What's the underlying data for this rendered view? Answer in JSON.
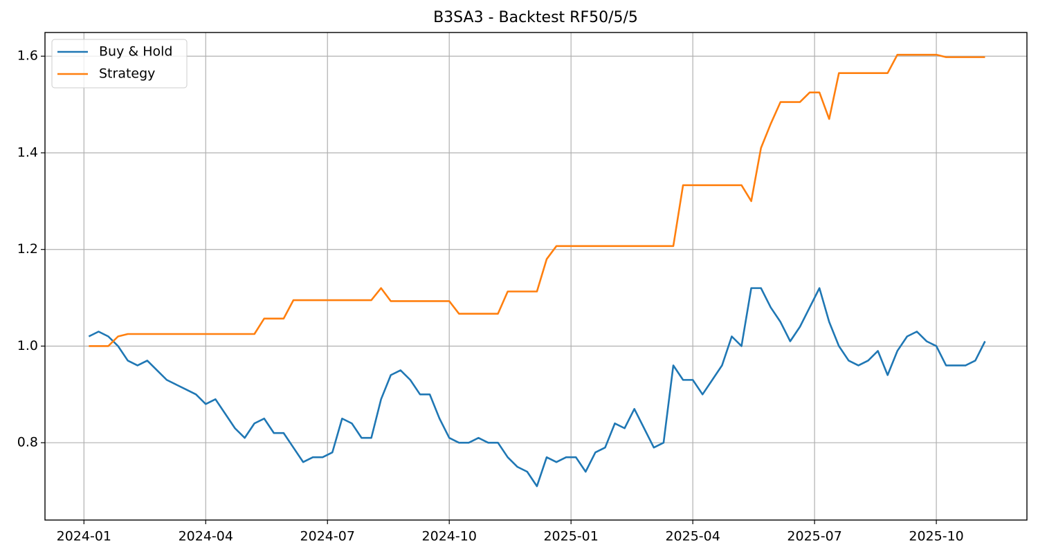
{
  "chart_data": {
    "type": "line",
    "title": "B3SA3 - Backtest RF50/5/5",
    "x": [
      2024.01,
      2024.03,
      2024.05,
      2024.07,
      2024.09,
      2024.11,
      2024.13,
      2024.15,
      2024.17,
      2024.19,
      2024.21,
      2024.23,
      2024.25,
      2024.27,
      2024.29,
      2024.31,
      2024.33,
      2024.35,
      2024.37,
      2024.39,
      2024.41,
      2024.43,
      2024.45,
      2024.47,
      2024.49,
      2024.51,
      2024.53,
      2024.55,
      2024.57,
      2024.59,
      2024.61,
      2024.63,
      2024.65,
      2024.67,
      2024.69,
      2024.71,
      2024.73,
      2024.75,
      2024.77,
      2024.79,
      2024.81,
      2024.83,
      2024.85,
      2024.87,
      2024.89,
      2024.91,
      2024.93,
      2024.95,
      2024.97,
      2024.99,
      2025.01,
      2025.03,
      2025.05,
      2025.07,
      2025.09,
      2025.11,
      2025.13,
      2025.15,
      2025.17,
      2025.19,
      2025.21,
      2025.23,
      2025.25,
      2025.27,
      2025.29,
      2025.31,
      2025.33,
      2025.35,
      2025.37,
      2025.39,
      2025.41,
      2025.43,
      2025.45,
      2025.47,
      2025.49,
      2025.51,
      2025.53,
      2025.55,
      2025.57,
      2025.59,
      2025.61,
      2025.63,
      2025.65,
      2025.67,
      2025.69,
      2025.71,
      2025.73,
      2025.75,
      2025.77,
      2025.79,
      2025.81,
      2025.83,
      2025.85
    ],
    "series": [
      {
        "name": "Buy & Hold",
        "color": "#1f77b4",
        "values": [
          1.02,
          1.03,
          1.02,
          1.0,
          0.97,
          0.96,
          0.97,
          0.95,
          0.93,
          0.92,
          0.91,
          0.9,
          0.88,
          0.89,
          0.86,
          0.83,
          0.81,
          0.84,
          0.85,
          0.82,
          0.82,
          0.79,
          0.76,
          0.77,
          0.77,
          0.78,
          0.85,
          0.84,
          0.81,
          0.81,
          0.89,
          0.94,
          0.95,
          0.93,
          0.9,
          0.9,
          0.85,
          0.81,
          0.8,
          0.8,
          0.81,
          0.8,
          0.8,
          0.77,
          0.75,
          0.74,
          0.71,
          0.77,
          0.76,
          0.77,
          0.77,
          0.74,
          0.78,
          0.79,
          0.84,
          0.83,
          0.87,
          0.83,
          0.79,
          0.8,
          0.96,
          0.93,
          0.93,
          0.9,
          0.93,
          0.96,
          1.02,
          1.0,
          1.12,
          1.12,
          1.08,
          1.05,
          1.01,
          1.04,
          1.08,
          1.12,
          1.05,
          1.0,
          0.97,
          0.96,
          0.97,
          0.99,
          0.94,
          0.99,
          1.02,
          1.03,
          1.01,
          1.0,
          0.96,
          0.96,
          0.96,
          0.97,
          1.01
        ]
      },
      {
        "name": "Strategy",
        "color": "#ff7f0e",
        "values": [
          1.0,
          1.0,
          1.0,
          1.02,
          1.025,
          1.025,
          1.025,
          1.025,
          1.025,
          1.025,
          1.025,
          1.025,
          1.025,
          1.025,
          1.025,
          1.025,
          1.025,
          1.025,
          1.057,
          1.057,
          1.057,
          1.095,
          1.095,
          1.095,
          1.095,
          1.095,
          1.095,
          1.095,
          1.095,
          1.095,
          1.12,
          1.093,
          1.093,
          1.093,
          1.093,
          1.093,
          1.093,
          1.093,
          1.067,
          1.067,
          1.067,
          1.067,
          1.067,
          1.113,
          1.113,
          1.113,
          1.113,
          1.18,
          1.207,
          1.207,
          1.207,
          1.207,
          1.207,
          1.207,
          1.207,
          1.207,
          1.207,
          1.207,
          1.207,
          1.207,
          1.207,
          1.333,
          1.333,
          1.333,
          1.333,
          1.333,
          1.333,
          1.333,
          1.3,
          1.41,
          1.46,
          1.505,
          1.505,
          1.505,
          1.525,
          1.525,
          1.47,
          1.565,
          1.565,
          1.565,
          1.565,
          1.565,
          1.565,
          1.603,
          1.603,
          1.603,
          1.603,
          1.603,
          1.598,
          1.598,
          1.598,
          1.598,
          1.598
        ]
      }
    ],
    "xlim": [
      2023.92,
      2025.936
    ],
    "xticks": [
      {
        "value": 2024,
        "label": "2024-01"
      },
      {
        "value": 2024.25,
        "label": "2024-04"
      },
      {
        "value": 2024.5,
        "label": "2024-07"
      },
      {
        "value": 2024.75,
        "label": "2024-10"
      },
      {
        "value": 2025,
        "label": "2025-01"
      },
      {
        "value": 2025.25,
        "label": "2025-04"
      },
      {
        "value": 2025.5,
        "label": "2025-07"
      },
      {
        "value": 2025.75,
        "label": "2025-10"
      }
    ],
    "ylim": [
      0.64,
      1.649
    ],
    "yticks": [
      0.8,
      {
        "value": 1.0,
        "label": "1.0"
      },
      1.2,
      1.4,
      1.6
    ],
    "grid": true,
    "legend": "upper-left"
  }
}
